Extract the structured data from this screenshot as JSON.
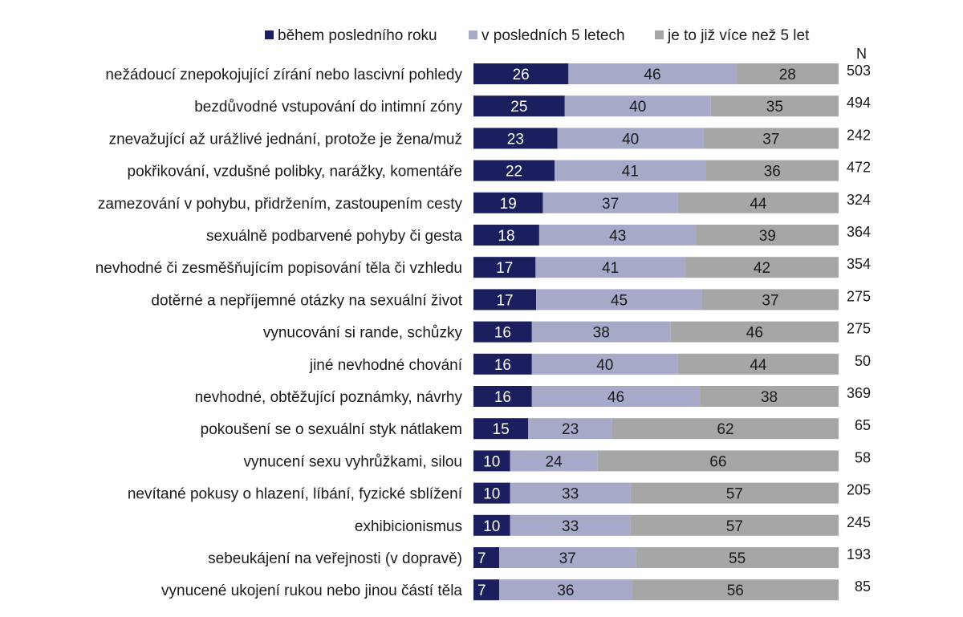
{
  "chart_data": {
    "type": "bar",
    "orientation": "horizontal",
    "stacked": true,
    "legend": "top",
    "grid": false,
    "n_header": "N",
    "colors": [
      "#1b1f5e",
      "#a6a9c8",
      "#a6a6a6"
    ],
    "series": [
      {
        "name": "během posledního roku",
        "values": [
          26,
          25,
          23,
          22,
          19,
          18,
          17,
          17,
          16,
          16,
          16,
          15,
          10,
          10,
          10,
          7,
          7
        ]
      },
      {
        "name": "v posledních 5 letech",
        "values": [
          46,
          40,
          40,
          41,
          37,
          43,
          41,
          45,
          38,
          40,
          46,
          23,
          24,
          33,
          33,
          37,
          36
        ]
      },
      {
        "name": "je to již více než 5 let",
        "values": [
          28,
          35,
          37,
          36,
          44,
          39,
          42,
          37,
          46,
          44,
          38,
          62,
          66,
          57,
          57,
          55,
          56
        ]
      }
    ],
    "categories": [
      "nežádoucí znepokojující zírání nebo lascivní pohledy",
      "bezdůvodné vstupování do intimní zóny",
      "znevažující až urážlivé jednání, protože je  žena/muž",
      "pokřikování, vzdušné polibky, narážky, komentáře",
      "zamezování v pohybu, přidržením, zastoupením cesty",
      "sexuálně podbarvené pohyby či gesta",
      "nevhodné či zesměšňujícím popisování těla či vzhledu",
      "dotěrné a nepříjemné otázky na sexuální život",
      "vynucování si rande, schůzky",
      "jiné nevhodné chování",
      "nevhodné, obtěžující poznámky, návrhy",
      "pokoušení se o sexuální styk nátlakem",
      "vynucení sexu vyhrůžkami, silou",
      "nevítané pokusy o hlazení, líbání, fyzické sblížení",
      "exhibicionismus",
      "sebeukájení na veřejnosti (v dopravě)",
      "vynucené ukojení rukou nebo jinou částí těla"
    ],
    "n_values": [
      503,
      494,
      242,
      472,
      324,
      364,
      354,
      275,
      275,
      50,
      369,
      65,
      58,
      205,
      245,
      193,
      85
    ]
  }
}
